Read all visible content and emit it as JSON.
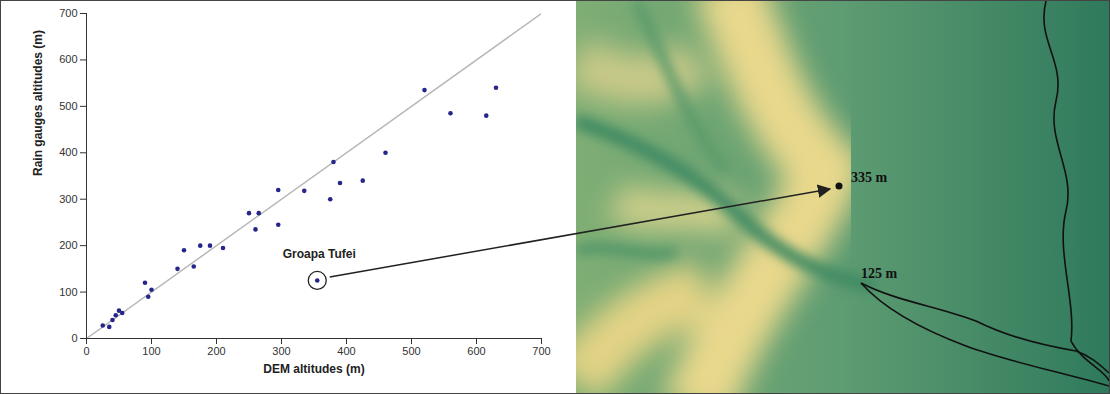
{
  "chart_data": {
    "type": "scatter",
    "xlabel": "DEM altitudes (m)",
    "ylabel": "Rain gauges altitudes (m)",
    "xlim": [
      0,
      700
    ],
    "ylim": [
      0,
      700
    ],
    "xticks": [
      0,
      100,
      200,
      300,
      400,
      500,
      600,
      700
    ],
    "yticks": [
      0,
      100,
      200,
      300,
      400,
      500,
      600,
      700
    ],
    "grid": false,
    "series": [
      {
        "type": "scatter",
        "marker": "circle",
        "color": "#26268a",
        "x": [
          25,
          35,
          40,
          45,
          50,
          55,
          90,
          95,
          100,
          140,
          150,
          165,
          175,
          190,
          210,
          250,
          260,
          265,
          295,
          295,
          335,
          375,
          380,
          390,
          425,
          460,
          520,
          560,
          615,
          630,
          355
        ],
        "values": [
          28,
          25,
          40,
          50,
          60,
          55,
          120,
          90,
          105,
          150,
          190,
          155,
          200,
          200,
          195,
          270,
          235,
          270,
          320,
          245,
          318,
          300,
          380,
          335,
          340,
          400,
          535,
          485,
          480,
          540,
          125
        ]
      },
      {
        "type": "line",
        "line_style": "solid",
        "color": "#b8b8b8",
        "x": [
          0,
          700
        ],
        "values": [
          0,
          700
        ]
      }
    ],
    "annotations": [
      {
        "text": "Groapa Tufei",
        "x": 355,
        "y": 125
      }
    ]
  },
  "map": {
    "labels": [
      {
        "text": "335 m"
      },
      {
        "text": "125 m"
      }
    ]
  }
}
